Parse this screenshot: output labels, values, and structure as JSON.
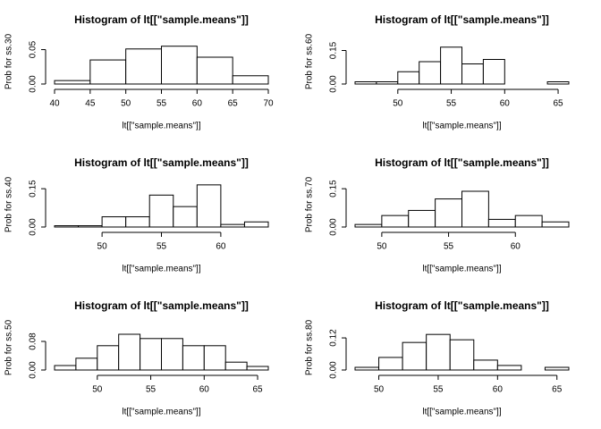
{
  "chart_data": [
    {
      "type": "histogram",
      "title": "Histogram of lt[[\"sample.means\"]]",
      "xlabel": "lt[[\"sample.means\"]]",
      "ylabel": "Prob for ss.30",
      "bins": [
        40,
        45,
        50,
        55,
        60,
        65,
        70
      ],
      "values": [
        0.005,
        0.035,
        0.051,
        0.055,
        0.039,
        0.012
      ],
      "xlim": [
        40,
        70
      ],
      "ylim": [
        0,
        0.065
      ],
      "xticks": [
        40,
        45,
        50,
        55,
        60,
        65,
        70
      ],
      "yticks": [
        {
          "value": 0,
          "label": "0.00"
        },
        {
          "value": 0.05,
          "label": "0.05"
        }
      ],
      "color": "#ffffff"
    },
    {
      "type": "histogram",
      "title": "Histogram of lt[[\"sample.means\"]]",
      "xlabel": "lt[[\"sample.means\"]]",
      "ylabel": "Prob for ss.60",
      "bins": [
        46,
        48,
        50,
        52,
        54,
        56,
        58,
        60,
        62,
        64,
        66
      ],
      "values": [
        0.01,
        0.01,
        0.055,
        0.1,
        0.165,
        0.09,
        0.11,
        0,
        0,
        0.01
      ],
      "xlim": [
        46,
        66
      ],
      "ylim": [
        0,
        0.2
      ],
      "xticks": [
        50,
        55,
        60,
        65
      ],
      "yticks": [
        {
          "value": 0,
          "label": "0.00"
        },
        {
          "value": 0.15,
          "label": "0.15"
        }
      ],
      "color": "#ffffff"
    },
    {
      "type": "histogram",
      "title": "Histogram of lt[[\"sample.means\"]]",
      "xlabel": "lt[[\"sample.means\"]]",
      "ylabel": "Prob for ss.40",
      "bins": [
        46,
        48,
        50,
        52,
        54,
        56,
        58,
        60,
        62,
        64
      ],
      "values": [
        0.005,
        0.005,
        0.04,
        0.04,
        0.125,
        0.08,
        0.165,
        0.01,
        0.02
      ],
      "xlim": [
        46,
        64
      ],
      "ylim": [
        0,
        0.175
      ],
      "xticks": [
        50,
        55,
        60
      ],
      "yticks": [
        {
          "value": 0,
          "label": "0.00"
        },
        {
          "value": 0.15,
          "label": "0.15"
        }
      ],
      "color": "#ffffff"
    },
    {
      "type": "histogram",
      "title": "Histogram of lt[[\"sample.means\"]]",
      "xlabel": "lt[[\"sample.means\"]]",
      "ylabel": "Prob for ss.70",
      "bins": [
        48,
        50,
        52,
        54,
        56,
        58,
        60,
        62,
        64
      ],
      "values": [
        0.01,
        0.045,
        0.065,
        0.11,
        0.14,
        0.03,
        0.045,
        0.02
      ],
      "xlim": [
        48,
        64
      ],
      "ylim": [
        0,
        0.175
      ],
      "xticks": [
        50,
        55,
        60
      ],
      "yticks": [
        {
          "value": 0,
          "label": "0.00"
        },
        {
          "value": 0.15,
          "label": "0.15"
        }
      ],
      "color": "#ffffff"
    },
    {
      "type": "histogram",
      "title": "Histogram of lt[[\"sample.means\"]]",
      "xlabel": "lt[[\"sample.means\"]]",
      "ylabel": "Prob for ss.50",
      "bins": [
        46,
        48,
        50,
        52,
        54,
        56,
        58,
        60,
        62,
        64,
        66
      ],
      "values": [
        0.0125,
        0.033,
        0.068,
        0.1,
        0.088,
        0.088,
        0.068,
        0.068,
        0.022,
        0.01
      ],
      "xlim": [
        46,
        66
      ],
      "ylim": [
        0,
        0.125
      ],
      "xticks": [
        50,
        55,
        60,
        65
      ],
      "yticks": [
        {
          "value": 0,
          "label": "0.00"
        },
        {
          "value": 0.08,
          "label": "0.08"
        }
      ],
      "color": "#ffffff"
    },
    {
      "type": "histogram",
      "title": "Histogram of lt[[\"sample.means\"]]",
      "xlabel": "lt[[\"sample.means\"]]",
      "ylabel": "Prob for ss.80",
      "bins": [
        48,
        50,
        52,
        54,
        56,
        58,
        60,
        62,
        64,
        66
      ],
      "values": [
        0.01,
        0.047,
        0.103,
        0.133,
        0.113,
        0.037,
        0.017,
        0,
        0.01
      ],
      "xlim": [
        48,
        66
      ],
      "ylim": [
        0,
        0.167
      ],
      "xticks": [
        50,
        55,
        60,
        65
      ],
      "yticks": [
        {
          "value": 0,
          "label": "0.00"
        },
        {
          "value": 0.12,
          "label": "0.12"
        }
      ],
      "color": "#ffffff"
    }
  ]
}
